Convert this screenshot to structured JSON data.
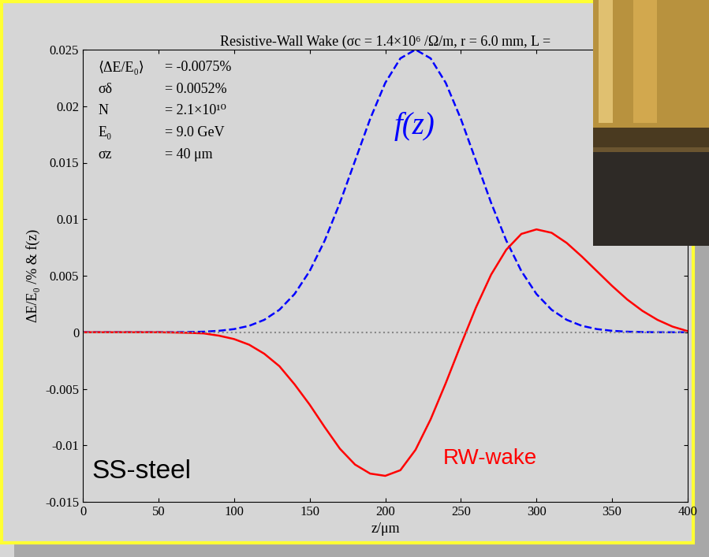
{
  "chart_data": {
    "type": "line",
    "title": "Resistive-Wall Wake (σc = 1.4×10⁶ /Ω/m, r = 6.0 mm, L =",
    "x_label": "z/μm",
    "y_label": "ΔE/E₀ /% & f(z)",
    "x": [
      0,
      10,
      20,
      30,
      40,
      50,
      60,
      70,
      80,
      90,
      100,
      110,
      120,
      130,
      140,
      150,
      160,
      170,
      180,
      190,
      200,
      210,
      220,
      230,
      240,
      250,
      260,
      270,
      280,
      290,
      300,
      310,
      320,
      330,
      340,
      350,
      360,
      370,
      380,
      390,
      400
    ],
    "series": [
      {
        "name": "f(z)",
        "color": "#0000ff",
        "line_style": "dashed",
        "values": [
          0,
          0,
          0,
          0,
          0,
          0,
          0,
          2e-05,
          5e-05,
          0.00013,
          0.00028,
          0.00057,
          0.0011,
          0.00199,
          0.00338,
          0.00541,
          0.00812,
          0.01145,
          0.01516,
          0.01887,
          0.02206,
          0.02423,
          0.025,
          0.02423,
          0.02206,
          0.01887,
          0.01516,
          0.01145,
          0.00812,
          0.00541,
          0.00338,
          0.00199,
          0.0011,
          0.00057,
          0.00028,
          0.00013,
          5e-05,
          2e-05,
          0,
          0,
          0
        ]
      },
      {
        "name": "RW-wake",
        "color": "#ff0000",
        "line_style": "solid",
        "values": [
          0,
          0,
          0,
          0,
          0,
          0,
          -2e-05,
          -5e-05,
          -0.0001,
          -0.0003,
          -0.0006,
          -0.0011,
          -0.0019,
          -0.003,
          -0.0046,
          -0.0064,
          -0.0084,
          -0.0103,
          -0.0117,
          -0.0125,
          -0.0127,
          -0.0122,
          -0.0104,
          -0.0077,
          -0.0045,
          -0.0011,
          0.0022,
          0.0051,
          0.0073,
          0.0087,
          0.0091,
          0.0088,
          0.0079,
          0.0067,
          0.0054,
          0.0041,
          0.0029,
          0.0019,
          0.0011,
          0.0005,
          0.0001
        ]
      }
    ],
    "zero_line": 0,
    "stats": [
      {
        "label": "⟨ΔE/E₀⟩",
        "text": "= -0.0075%"
      },
      {
        "label": "σδ",
        "text": "= 0.0052%"
      },
      {
        "label": "N",
        "text": "= 2.1×10¹⁰"
      },
      {
        "label": "E₀",
        "text": "= 9.0 GeV"
      },
      {
        "label": "σz",
        "text": "= 40 μm"
      }
    ],
    "annotations": [
      "SS-steel"
    ],
    "xlim": [
      0,
      400
    ],
    "xticks": [
      0,
      50,
      100,
      150,
      200,
      250,
      300,
      350,
      400
    ],
    "ylim": [
      -0.015,
      0.025
    ],
    "yticks": [
      -0.015,
      -0.01,
      -0.005,
      0,
      0.005,
      0.01,
      0.015,
      0.02,
      0.025
    ],
    "grid": false
  }
}
